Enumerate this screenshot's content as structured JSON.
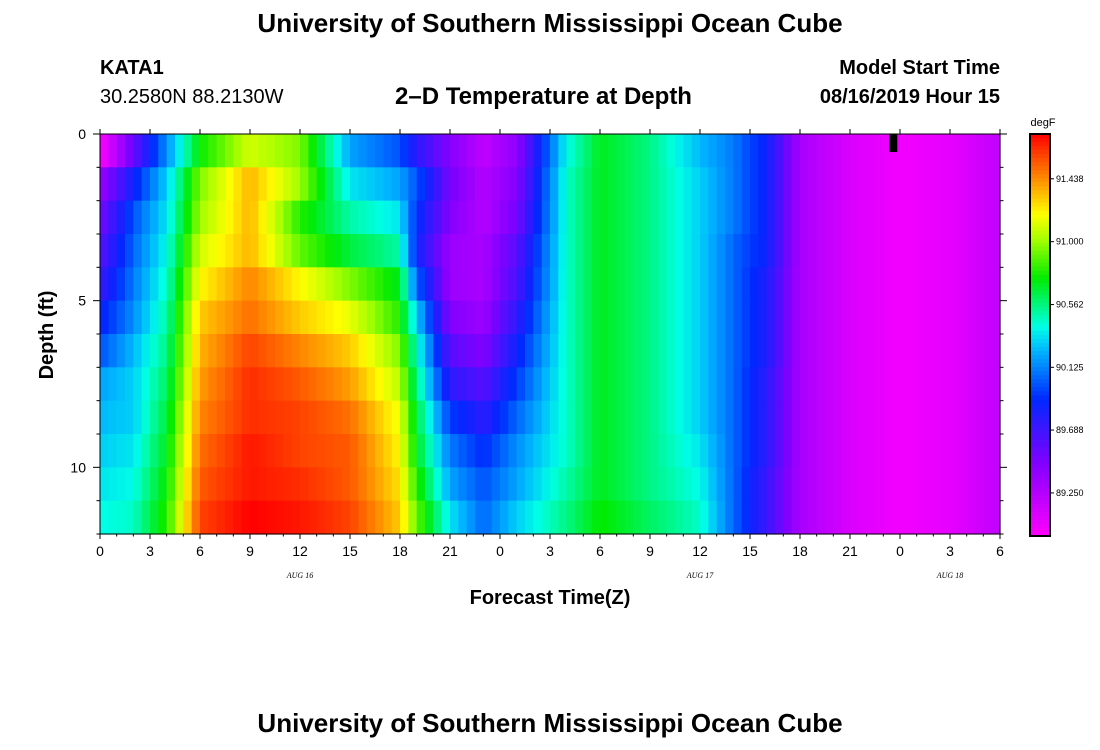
{
  "header": {
    "title": "University of Southern Mississippi Ocean Cube",
    "footer_title": "University of Southern Mississippi Ocean Cube",
    "station": "KATA1",
    "coords": "30.2580N 88.2130W",
    "subtitle": "2–D Temperature at Depth",
    "model_start_label": "Model Start Time",
    "model_start_value": "08/16/2019 Hour 15"
  },
  "chart_data": {
    "type": "heatmap",
    "title": "2–D Temperature at Depth",
    "xlabel": "Forecast Time(Z)",
    "ylabel": "Depth (ft)",
    "x_range_hours": [
      0,
      54
    ],
    "x_tick_labels": [
      "0",
      "3",
      "6",
      "9",
      "12",
      "15",
      "18",
      "21",
      "0",
      "3",
      "6",
      "9",
      "12",
      "15",
      "18",
      "21",
      "0",
      "3",
      "6"
    ],
    "x_tick_hours": [
      0,
      3,
      6,
      9,
      12,
      15,
      18,
      21,
      24,
      27,
      30,
      33,
      36,
      39,
      42,
      45,
      48,
      51,
      54
    ],
    "date_labels": [
      {
        "text": "AUG 16",
        "hour": 12
      },
      {
        "text": "AUG 17",
        "hour": 36
      },
      {
        "text": "AUG 18",
        "hour": 51
      }
    ],
    "y_range_ft": [
      0,
      12
    ],
    "y_tick_labels": [
      "0",
      "5",
      "10"
    ],
    "y_tick_values": [
      0,
      5,
      10
    ],
    "depth_levels_ft": [
      0.5,
      1.5,
      2.5,
      3.5,
      4.5,
      5.5,
      6.5,
      7.5,
      8.5,
      9.5,
      10.5,
      11.5
    ],
    "key_hours": [
      0,
      2,
      4,
      6,
      9,
      12,
      15,
      18,
      19,
      21,
      23,
      25,
      28,
      30,
      33,
      36,
      38,
      40,
      42,
      45,
      48,
      51,
      54
    ],
    "values_degF": [
      [
        88.95,
        89.55,
        90.15,
        90.75,
        91.1,
        90.95,
        90.2,
        90.0,
        89.75,
        89.45,
        89.2,
        89.4,
        90.4,
        90.7,
        90.55,
        90.25,
        90.1,
        89.85,
        89.3,
        89.1,
        89.0,
        89.05,
        89.2
      ],
      [
        89.35,
        89.85,
        90.3,
        90.95,
        91.35,
        91.0,
        90.35,
        90.2,
        90.0,
        89.5,
        89.25,
        89.45,
        90.45,
        90.7,
        90.55,
        90.3,
        90.1,
        89.85,
        89.3,
        89.1,
        89.0,
        89.05,
        89.2
      ],
      [
        89.5,
        90.0,
        90.35,
        91.0,
        91.35,
        90.8,
        90.5,
        90.35,
        89.9,
        89.45,
        89.25,
        89.5,
        90.45,
        90.7,
        90.55,
        90.3,
        90.1,
        89.85,
        89.3,
        89.1,
        89.0,
        89.05,
        89.2
      ],
      [
        89.6,
        90.05,
        90.4,
        91.1,
        91.35,
        90.9,
        90.65,
        90.5,
        89.85,
        89.35,
        89.3,
        89.6,
        90.45,
        90.7,
        90.55,
        90.3,
        90.05,
        89.85,
        89.3,
        89.1,
        89.0,
        89.05,
        89.2
      ],
      [
        89.7,
        90.1,
        90.45,
        91.2,
        91.45,
        91.2,
        90.95,
        90.7,
        90.05,
        89.35,
        89.3,
        89.65,
        90.45,
        90.7,
        90.55,
        90.3,
        90.05,
        89.8,
        89.3,
        89.1,
        89.0,
        89.05,
        89.2
      ],
      [
        89.85,
        90.15,
        90.5,
        91.3,
        91.5,
        91.3,
        91.15,
        90.8,
        90.3,
        89.45,
        89.35,
        89.75,
        90.45,
        90.7,
        90.55,
        90.3,
        90.05,
        89.8,
        89.3,
        89.1,
        89.0,
        89.05,
        89.2
      ],
      [
        90.0,
        90.25,
        90.55,
        91.35,
        91.6,
        91.45,
        91.3,
        90.95,
        90.45,
        89.6,
        89.45,
        89.85,
        90.45,
        90.7,
        90.55,
        90.3,
        90.05,
        89.8,
        89.3,
        89.1,
        89.0,
        89.05,
        89.2
      ],
      [
        90.2,
        90.3,
        90.6,
        91.4,
        91.65,
        91.55,
        91.4,
        91.05,
        90.55,
        89.75,
        89.6,
        89.95,
        90.45,
        90.7,
        90.55,
        90.3,
        90.05,
        89.75,
        89.3,
        89.1,
        89.0,
        89.05,
        89.2
      ],
      [
        90.25,
        90.3,
        90.65,
        91.45,
        91.65,
        91.6,
        91.5,
        91.15,
        90.65,
        89.95,
        89.75,
        90.05,
        90.45,
        90.7,
        90.55,
        90.3,
        90.05,
        89.75,
        89.3,
        89.1,
        89.0,
        89.05,
        89.2
      ],
      [
        90.3,
        90.35,
        90.7,
        91.5,
        91.7,
        91.6,
        91.55,
        91.2,
        90.7,
        90.1,
        89.9,
        90.15,
        90.45,
        90.7,
        90.55,
        90.35,
        90.05,
        89.75,
        89.3,
        89.1,
        89.0,
        89.05,
        89.2
      ],
      [
        90.35,
        90.4,
        90.75,
        91.55,
        91.7,
        91.65,
        91.55,
        91.25,
        90.8,
        90.2,
        90.0,
        90.2,
        90.5,
        90.7,
        90.55,
        90.4,
        90.05,
        89.7,
        89.3,
        89.1,
        89.0,
        89.05,
        89.2
      ],
      [
        90.4,
        90.45,
        90.8,
        91.6,
        91.75,
        91.7,
        91.6,
        91.3,
        90.9,
        90.35,
        90.05,
        90.3,
        90.55,
        90.75,
        90.6,
        90.45,
        90.05,
        89.7,
        89.3,
        89.1,
        89.0,
        89.05,
        89.2
      ]
    ],
    "color_scale": {
      "unit": "degF",
      "labels": [
        "91.438",
        "91.000",
        "90.562",
        "90.125",
        "89.688",
        "89.250"
      ],
      "label_values": [
        91.438,
        91.0,
        90.562,
        90.125,
        89.688,
        89.25
      ],
      "min": 88.95,
      "max": 91.75
    },
    "now_marker_hour": 47.6
  },
  "colors": {
    "background": "#ffffff",
    "marker": "#000000"
  }
}
